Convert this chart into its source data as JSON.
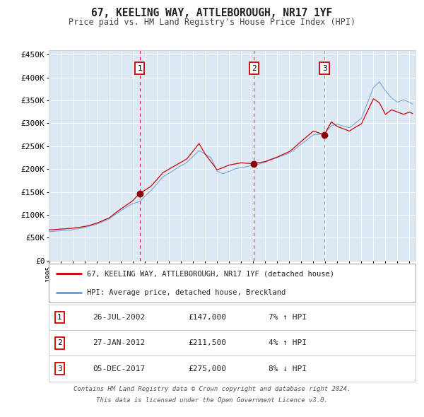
{
  "title": "67, KEELING WAY, ATTLEBOROUGH, NR17 1YF",
  "subtitle": "Price paid vs. HM Land Registry's House Price Index (HPI)",
  "bg_color": "#dce9f5",
  "red_line_label": "67, KEELING WAY, ATTLEBOROUGH, NR17 1YF (detached house)",
  "blue_line_label": "HPI: Average price, detached house, Breckland",
  "sale_dates": [
    "2002-07-26",
    "2012-01-27",
    "2017-12-05"
  ],
  "sale_prices": [
    147000,
    211500,
    275000
  ],
  "sale_labels": [
    "1",
    "2",
    "3"
  ],
  "table_rows": [
    [
      "1",
      "26-JUL-2002",
      "£147,000",
      "7% ↑ HPI"
    ],
    [
      "2",
      "27-JAN-2012",
      "£211,500",
      "4% ↑ HPI"
    ],
    [
      "3",
      "05-DEC-2017",
      "£275,000",
      "8% ↓ HPI"
    ]
  ],
  "footer_line1": "Contains HM Land Registry data © Crown copyright and database right 2024.",
  "footer_line2": "This data is licensed under the Open Government Licence v3.0.",
  "ylim": [
    0,
    460000
  ],
  "yticks": [
    0,
    50000,
    100000,
    150000,
    200000,
    250000,
    300000,
    350000,
    400000,
    450000
  ],
  "ytick_labels": [
    "£0",
    "£50K",
    "£100K",
    "£150K",
    "£200K",
    "£250K",
    "£300K",
    "£350K",
    "£400K",
    "£450K"
  ],
  "vline_colors": [
    "#cc0000",
    "#cc0000",
    "#888888"
  ],
  "red_color": "#cc0000",
  "blue_color": "#6699cc",
  "marker_color": "#8b0000",
  "xlim_start": 1995.0,
  "xlim_end": 2025.5
}
